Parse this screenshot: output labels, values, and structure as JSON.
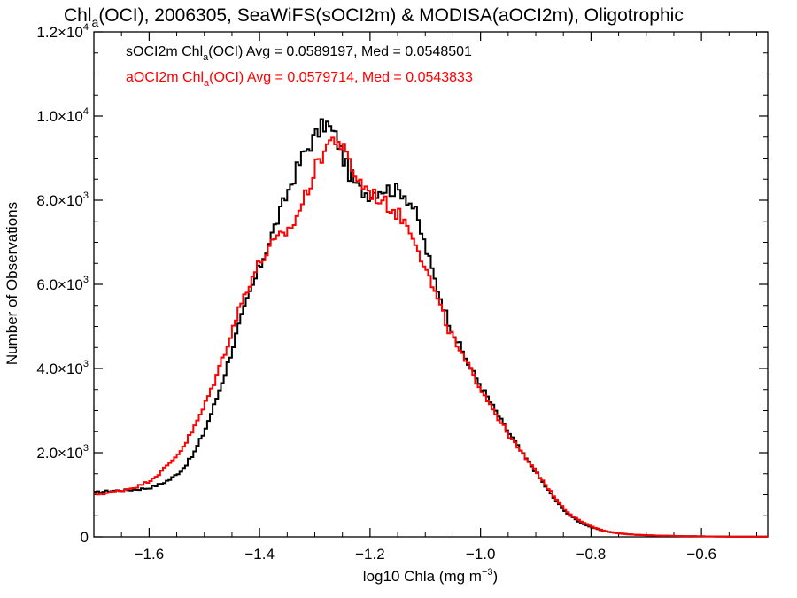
{
  "chart_data": {
    "type": "line",
    "title": {
      "pre": "Chl",
      "sub": "a",
      "post": "(OCI), 2006305, SeaWiFS(sOCI2m) & MODISA(aOCI2m), Oligotrophic"
    },
    "xlabel": {
      "pre": "log10 Chla (mg m",
      "sup": "−3",
      "post": ")"
    },
    "ylabel": "Number of Observations",
    "xlim": [
      -1.7,
      -0.48
    ],
    "ylim": [
      0,
      12000
    ],
    "x_ticks": [
      {
        "value": -1.6,
        "label": "−1.6"
      },
      {
        "value": -1.4,
        "label": "−1.4"
      },
      {
        "value": -1.2,
        "label": "−1.2"
      },
      {
        "value": -1.0,
        "label": "−1.0"
      },
      {
        "value": -0.8,
        "label": "−0.8"
      },
      {
        "value": -0.6,
        "label": "−0.6"
      }
    ],
    "y_ticks": [
      {
        "value": 0,
        "mant": "0",
        "exp": ""
      },
      {
        "value": 2000,
        "mant": "2.0×10",
        "exp": "3"
      },
      {
        "value": 4000,
        "mant": "4.0×10",
        "exp": "3"
      },
      {
        "value": 6000,
        "mant": "6.0×10",
        "exp": "3"
      },
      {
        "value": 8000,
        "mant": "8.0×10",
        "exp": "3"
      },
      {
        "value": 10000,
        "mant": "1.0×10",
        "exp": "4"
      },
      {
        "value": 12000,
        "mant": "1.2×10",
        "exp": "4"
      }
    ],
    "legend": [
      {
        "pre": "sOCI2m Chl",
        "sub": "a",
        "post": "(OCI) Avg = 0.0589197, Med = 0.0548501",
        "color": "#000000"
      },
      {
        "pre": "aOCI2m Chl",
        "sub": "a",
        "post": "(OCI) Avg = 0.0579714, Med = 0.0543833",
        "color": "#ff0000"
      }
    ],
    "series": [
      {
        "color": "#000000",
        "x": [
          -1.7,
          -1.68,
          -1.66,
          -1.64,
          -1.62,
          -1.6,
          -1.58,
          -1.56,
          -1.54,
          -1.52,
          -1.5,
          -1.48,
          -1.46,
          -1.44,
          -1.42,
          -1.4,
          -1.38,
          -1.36,
          -1.34,
          -1.32,
          -1.3,
          -1.28,
          -1.26,
          -1.24,
          -1.22,
          -1.2,
          -1.18,
          -1.16,
          -1.14,
          -1.12,
          -1.1,
          -1.08,
          -1.06,
          -1.04,
          -1.02,
          -1.0,
          -0.98,
          -0.96,
          -0.94,
          -0.92,
          -0.9,
          -0.88,
          -0.86,
          -0.84,
          -0.82,
          -0.8,
          -0.78,
          -0.76,
          -0.74,
          -0.72,
          -0.7,
          -0.68,
          -0.66,
          -0.64,
          -0.62,
          -0.6,
          -0.58,
          -0.56,
          -0.54,
          -0.52,
          -0.5
        ],
        "y": [
          1050,
          1080,
          1100,
          1110,
          1130,
          1160,
          1250,
          1380,
          1600,
          1950,
          2500,
          3200,
          4000,
          4900,
          5700,
          6400,
          7100,
          7800,
          8500,
          9100,
          9500,
          9850,
          9450,
          8700,
          8250,
          8150,
          8280,
          8250,
          8200,
          7800,
          6900,
          6000,
          5200,
          4600,
          4050,
          3600,
          3150,
          2700,
          2300,
          1900,
          1550,
          1150,
          800,
          520,
          350,
          230,
          150,
          100,
          70,
          50,
          40,
          30,
          25,
          20,
          15,
          12,
          10,
          8,
          6,
          5,
          4
        ]
      },
      {
        "color": "#ff0000",
        "x": [
          -1.7,
          -1.68,
          -1.66,
          -1.64,
          -1.62,
          -1.6,
          -1.58,
          -1.56,
          -1.54,
          -1.52,
          -1.5,
          -1.48,
          -1.46,
          -1.44,
          -1.42,
          -1.4,
          -1.38,
          -1.36,
          -1.34,
          -1.32,
          -1.3,
          -1.28,
          -1.26,
          -1.24,
          -1.22,
          -1.2,
          -1.18,
          -1.16,
          -1.14,
          -1.12,
          -1.1,
          -1.08,
          -1.06,
          -1.04,
          -1.02,
          -1.0,
          -0.98,
          -0.96,
          -0.94,
          -0.92,
          -0.9,
          -0.88,
          -0.86,
          -0.84,
          -0.82,
          -0.8,
          -0.78,
          -0.76,
          -0.74,
          -0.72,
          -0.7,
          -0.68,
          -0.66,
          -0.64,
          -0.62,
          -0.6,
          -0.58,
          -0.56,
          -0.54,
          -0.52,
          -0.5
        ],
        "y": [
          1000,
          1030,
          1080,
          1130,
          1200,
          1330,
          1520,
          1780,
          2100,
          2550,
          3100,
          3750,
          4500,
          5300,
          6000,
          6500,
          6900,
          7150,
          7400,
          8000,
          8700,
          9300,
          9500,
          8950,
          8450,
          8200,
          8000,
          7800,
          7550,
          7150,
          6400,
          5700,
          5000,
          4450,
          4000,
          3550,
          3100,
          2650,
          2250,
          1900,
          1550,
          1200,
          850,
          560,
          380,
          250,
          160,
          100,
          70,
          50,
          40,
          30,
          25,
          20,
          15,
          12,
          10,
          8,
          6,
          5,
          4
        ]
      }
    ]
  }
}
